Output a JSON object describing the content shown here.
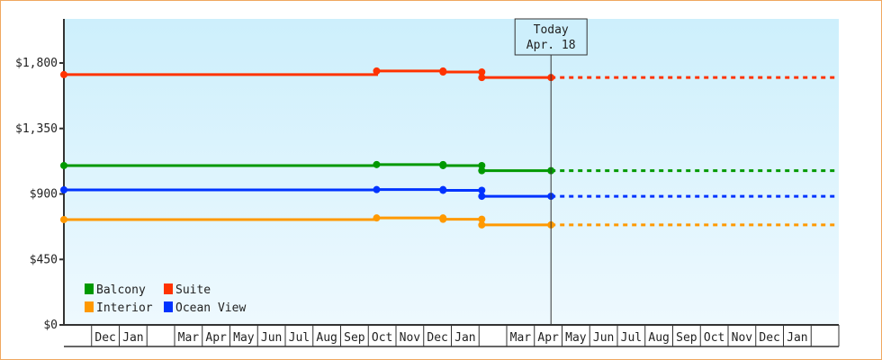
{
  "chart_data": {
    "type": "line",
    "title": "",
    "ylabel": "",
    "xlabel": "",
    "ylim": [
      0,
      2000
    ],
    "yticks": [
      0,
      450,
      900,
      1350,
      1800
    ],
    "ytick_labels": [
      "$0",
      "$450",
      "$900",
      "$1,350",
      "$1,800"
    ],
    "months": [
      "",
      "Dec",
      "Jan",
      "",
      "Mar",
      "Apr",
      "May",
      "Jun",
      "Jul",
      "Aug",
      "Sep",
      "Oct",
      "Nov",
      "Dec",
      "Jan",
      "",
      "Mar",
      "Apr",
      "May",
      "Jun",
      "Jul",
      "Aug",
      "Sep",
      "Oct",
      "Nov",
      "Dec",
      "Jan",
      ""
    ],
    "today": {
      "line1": "Today",
      "line2": "Apr. 18",
      "month_index": 17.6
    },
    "legend": [
      "Balcony",
      "Suite",
      "Interior",
      "Ocean View"
    ],
    "legend_position": "bottom-left",
    "series": [
      {
        "name": "Suite",
        "color": "#ff3300",
        "points": [
          [
            0,
            1720
          ],
          [
            11.3,
            1720
          ],
          [
            11.3,
            1745
          ],
          [
            13.7,
            1745
          ],
          [
            13.7,
            1738
          ],
          [
            15.1,
            1738
          ],
          [
            15.1,
            1700
          ],
          [
            17.6,
            1700
          ]
        ],
        "projected": 1700
      },
      {
        "name": "Balcony",
        "color": "#009900",
        "points": [
          [
            0,
            1095
          ],
          [
            11.3,
            1095
          ],
          [
            11.3,
            1102
          ],
          [
            13.7,
            1102
          ],
          [
            13.7,
            1095
          ],
          [
            15.1,
            1095
          ],
          [
            15.1,
            1060
          ],
          [
            17.6,
            1060
          ]
        ],
        "projected": 1060
      },
      {
        "name": "Ocean View",
        "color": "#0033ff",
        "points": [
          [
            0,
            928
          ],
          [
            11.3,
            928
          ],
          [
            11.3,
            930
          ],
          [
            13.7,
            930
          ],
          [
            13.7,
            925
          ],
          [
            15.1,
            925
          ],
          [
            15.1,
            884
          ],
          [
            17.6,
            884
          ]
        ],
        "projected": 884
      },
      {
        "name": "Interior",
        "color": "#ff9900",
        "points": [
          [
            0,
            724
          ],
          [
            11.3,
            724
          ],
          [
            11.3,
            735
          ],
          [
            13.7,
            735
          ],
          [
            13.7,
            726
          ],
          [
            15.1,
            726
          ],
          [
            15.1,
            687
          ],
          [
            17.6,
            687
          ]
        ],
        "projected": 687
      }
    ]
  }
}
